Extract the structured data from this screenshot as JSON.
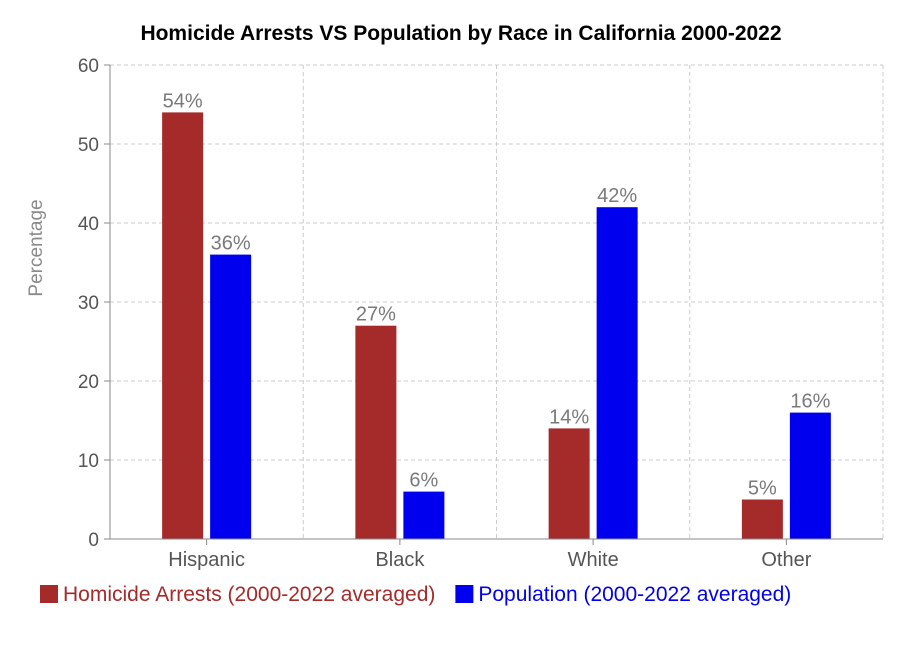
{
  "chart_data": {
    "type": "bar",
    "title": "Homicide Arrests VS Population by Race in California 2000-2022",
    "xlabel": "",
    "ylabel": "Percentage",
    "ylim": [
      0,
      60
    ],
    "yticks": [
      0,
      10,
      20,
      30,
      40,
      50,
      60
    ],
    "grid": true,
    "legend_position": "bottom-left",
    "categories": [
      "Hispanic",
      "Black",
      "White",
      "Other"
    ],
    "series": [
      {
        "name": "Homicide Arrests (2000-2022 averaged)",
        "color": "#a52a2a",
        "values": [
          54,
          27,
          14,
          5
        ],
        "labels": [
          "54%",
          "27%",
          "14%",
          "5%"
        ]
      },
      {
        "name": "Population (2000-2022 averaged)",
        "color": "#0000ee",
        "values": [
          36,
          6,
          42,
          16
        ],
        "labels": [
          "36%",
          "6%",
          "42%",
          "16%"
        ]
      }
    ]
  }
}
